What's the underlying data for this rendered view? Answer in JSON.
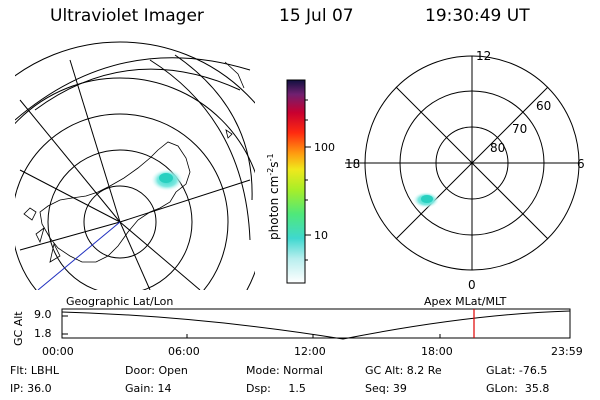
{
  "header": {
    "title": "Ultraviolet Imager",
    "date": "15 Jul 07",
    "time": "19:30:49 UT"
  },
  "colorbar": {
    "label_main": "photon cm",
    "label_sup1": "-2",
    "label_s": "s",
    "label_sup2": "-1",
    "ticks": [
      "100",
      "10"
    ]
  },
  "polar_plot": {
    "mlt_labels": {
      "top": "12",
      "left": "18",
      "right": "6",
      "bottom": "0"
    },
    "lat_labels": [
      "60",
      "70",
      "80"
    ]
  },
  "panel_labels": {
    "left": "Geographic Lat/Lon",
    "right": "Apex MLat/MLT"
  },
  "timeline": {
    "axis_label": "GC Alt",
    "y_ticks": [
      "9.0",
      "1.8"
    ],
    "x_ticks": [
      "00:00",
      "06:00",
      "12:00",
      "18:00",
      "23:59"
    ],
    "marker_color": "#e00000"
  },
  "info": {
    "row1": [
      {
        "label": "Flt: LBHL"
      },
      {
        "label": "Door: Open"
      },
      {
        "label": "Mode: Normal"
      },
      {
        "label": "GC Alt: 8.2 Re"
      },
      {
        "label": "GLat: -76.5"
      }
    ],
    "row2": [
      {
        "label": "IP: 36.0"
      },
      {
        "label": "Gain: 14"
      },
      {
        "label": "Dsp:     1.5"
      },
      {
        "label": "Seq: 39"
      },
      {
        "label": "GLon:  35.8"
      }
    ]
  }
}
